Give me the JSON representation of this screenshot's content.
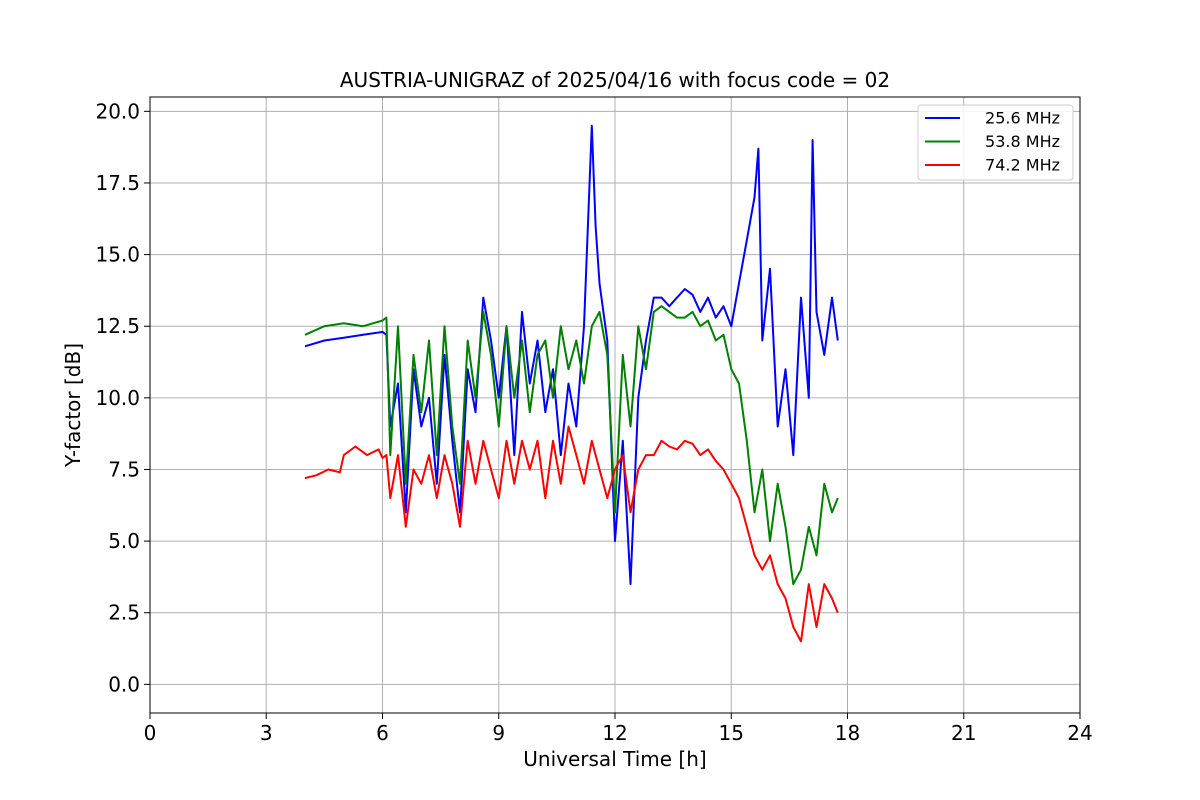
{
  "chart_data": {
    "type": "line",
    "title": "AUSTRIA-UNIGRAZ of 2025/04/16 with focus code = 02",
    "xlabel": "Universal Time [h]",
    "ylabel": "Y-factor [dB]",
    "xlim": [
      0,
      24
    ],
    "ylim": [
      -1.0,
      20.5
    ],
    "xticks": [
      0,
      3,
      6,
      9,
      12,
      15,
      18,
      21,
      24
    ],
    "xtick_labels": [
      "0",
      "3",
      "6",
      "9",
      "12",
      "15",
      "18",
      "21",
      "24"
    ],
    "yticks": [
      0.0,
      2.5,
      5.0,
      7.5,
      10.0,
      12.5,
      15.0,
      17.5,
      20.0
    ],
    "ytick_labels": [
      "0.0",
      "2.5",
      "5.0",
      "7.5",
      "10.0",
      "12.5",
      "15.0",
      "17.5",
      "20.0"
    ],
    "grid": true,
    "legend_position": "top-right",
    "series": [
      {
        "name": "25.6 MHz",
        "color": "#0000ff",
        "x": [
          4.0,
          4.5,
          5.0,
          5.5,
          6.0,
          6.1,
          6.2,
          6.4,
          6.6,
          6.8,
          7.0,
          7.2,
          7.4,
          7.6,
          7.8,
          8.0,
          8.2,
          8.4,
          8.6,
          8.8,
          9.0,
          9.2,
          9.4,
          9.6,
          9.8,
          10.0,
          10.2,
          10.4,
          10.6,
          10.8,
          11.0,
          11.2,
          11.4,
          11.5,
          11.6,
          11.8,
          12.0,
          12.2,
          12.4,
          12.6,
          12.8,
          13.0,
          13.2,
          13.4,
          13.6,
          13.8,
          14.0,
          14.2,
          14.4,
          14.6,
          14.8,
          15.0,
          15.2,
          15.4,
          15.6,
          15.7,
          15.8,
          16.0,
          16.2,
          16.4,
          16.6,
          16.8,
          17.0,
          17.1,
          17.2,
          17.4,
          17.6,
          17.75
        ],
        "y": [
          11.8,
          12.0,
          12.1,
          12.2,
          12.3,
          12.2,
          9.0,
          10.5,
          6.0,
          11.0,
          9.0,
          10.0,
          7.0,
          11.5,
          8.5,
          6.0,
          11.0,
          9.5,
          13.5,
          12.0,
          10.0,
          12.5,
          8.0,
          13.0,
          10.5,
          12.0,
          9.5,
          11.0,
          8.0,
          10.5,
          9.0,
          12.5,
          19.5,
          16.0,
          14.0,
          12.0,
          5.0,
          8.5,
          3.5,
          10.0,
          12.0,
          13.5,
          13.5,
          13.2,
          13.5,
          13.8,
          13.6,
          13.0,
          13.5,
          12.8,
          13.2,
          12.5,
          14.0,
          15.5,
          17.0,
          18.7,
          12.0,
          14.5,
          9.0,
          11.0,
          8.0,
          13.5,
          10.0,
          19.0,
          13.0,
          11.5,
          13.5,
          12.0
        ]
      },
      {
        "name": "53.8 MHz",
        "color": "#008000",
        "x": [
          4.0,
          4.5,
          5.0,
          5.5,
          6.0,
          6.1,
          6.2,
          6.4,
          6.6,
          6.8,
          7.0,
          7.2,
          7.4,
          7.6,
          7.8,
          8.0,
          8.2,
          8.4,
          8.6,
          8.8,
          9.0,
          9.2,
          9.4,
          9.6,
          9.8,
          10.0,
          10.2,
          10.4,
          10.6,
          10.8,
          11.0,
          11.2,
          11.4,
          11.6,
          11.8,
          12.0,
          12.2,
          12.4,
          12.6,
          12.8,
          13.0,
          13.2,
          13.4,
          13.6,
          13.8,
          14.0,
          14.2,
          14.4,
          14.6,
          14.8,
          15.0,
          15.2,
          15.4,
          15.6,
          15.8,
          16.0,
          16.2,
          16.4,
          16.6,
          16.8,
          17.0,
          17.2,
          17.4,
          17.6,
          17.75
        ],
        "y": [
          12.2,
          12.5,
          12.6,
          12.5,
          12.7,
          12.8,
          8.0,
          12.5,
          7.0,
          11.5,
          9.5,
          12.0,
          8.0,
          12.5,
          9.0,
          7.0,
          12.0,
          10.0,
          13.0,
          11.5,
          9.0,
          12.5,
          10.0,
          12.0,
          9.5,
          11.5,
          12.0,
          10.0,
          12.5,
          11.0,
          12.0,
          10.5,
          12.5,
          13.0,
          11.5,
          6.0,
          11.5,
          9.0,
          12.5,
          11.0,
          13.0,
          13.2,
          13.0,
          12.8,
          12.8,
          13.0,
          12.5,
          12.7,
          12.0,
          12.2,
          11.0,
          10.5,
          8.5,
          6.0,
          7.5,
          5.0,
          7.0,
          5.5,
          3.5,
          4.0,
          5.5,
          4.5,
          7.0,
          6.0,
          6.5
        ]
      },
      {
        "name": "74.2 MHz",
        "color": "#ff0000",
        "x": [
          4.0,
          4.3,
          4.6,
          4.9,
          5.0,
          5.3,
          5.6,
          5.9,
          6.0,
          6.1,
          6.2,
          6.4,
          6.6,
          6.8,
          7.0,
          7.2,
          7.4,
          7.6,
          7.8,
          8.0,
          8.2,
          8.4,
          8.6,
          8.8,
          9.0,
          9.2,
          9.4,
          9.6,
          9.8,
          10.0,
          10.2,
          10.4,
          10.6,
          10.8,
          11.0,
          11.2,
          11.4,
          11.6,
          11.8,
          12.0,
          12.2,
          12.4,
          12.6,
          12.8,
          13.0,
          13.2,
          13.4,
          13.6,
          13.8,
          14.0,
          14.2,
          14.4,
          14.6,
          14.8,
          15.0,
          15.2,
          15.4,
          15.6,
          15.8,
          16.0,
          16.2,
          16.4,
          16.6,
          16.8,
          17.0,
          17.2,
          17.4,
          17.6,
          17.75
        ],
        "y": [
          7.2,
          7.3,
          7.5,
          7.4,
          8.0,
          8.3,
          8.0,
          8.2,
          7.9,
          8.0,
          6.5,
          8.0,
          5.5,
          7.5,
          7.0,
          8.0,
          6.5,
          8.0,
          7.0,
          5.5,
          8.5,
          7.0,
          8.5,
          7.5,
          6.5,
          8.5,
          7.0,
          8.5,
          7.5,
          8.5,
          6.5,
          8.5,
          7.0,
          9.0,
          8.0,
          7.0,
          8.5,
          7.5,
          6.5,
          7.5,
          8.0,
          6.0,
          7.5,
          8.0,
          8.0,
          8.5,
          8.3,
          8.2,
          8.5,
          8.4,
          8.0,
          8.2,
          7.8,
          7.5,
          7.0,
          6.5,
          5.5,
          4.5,
          4.0,
          4.5,
          3.5,
          3.0,
          2.0,
          1.5,
          3.5,
          2.0,
          3.5,
          3.0,
          2.5
        ]
      }
    ]
  }
}
